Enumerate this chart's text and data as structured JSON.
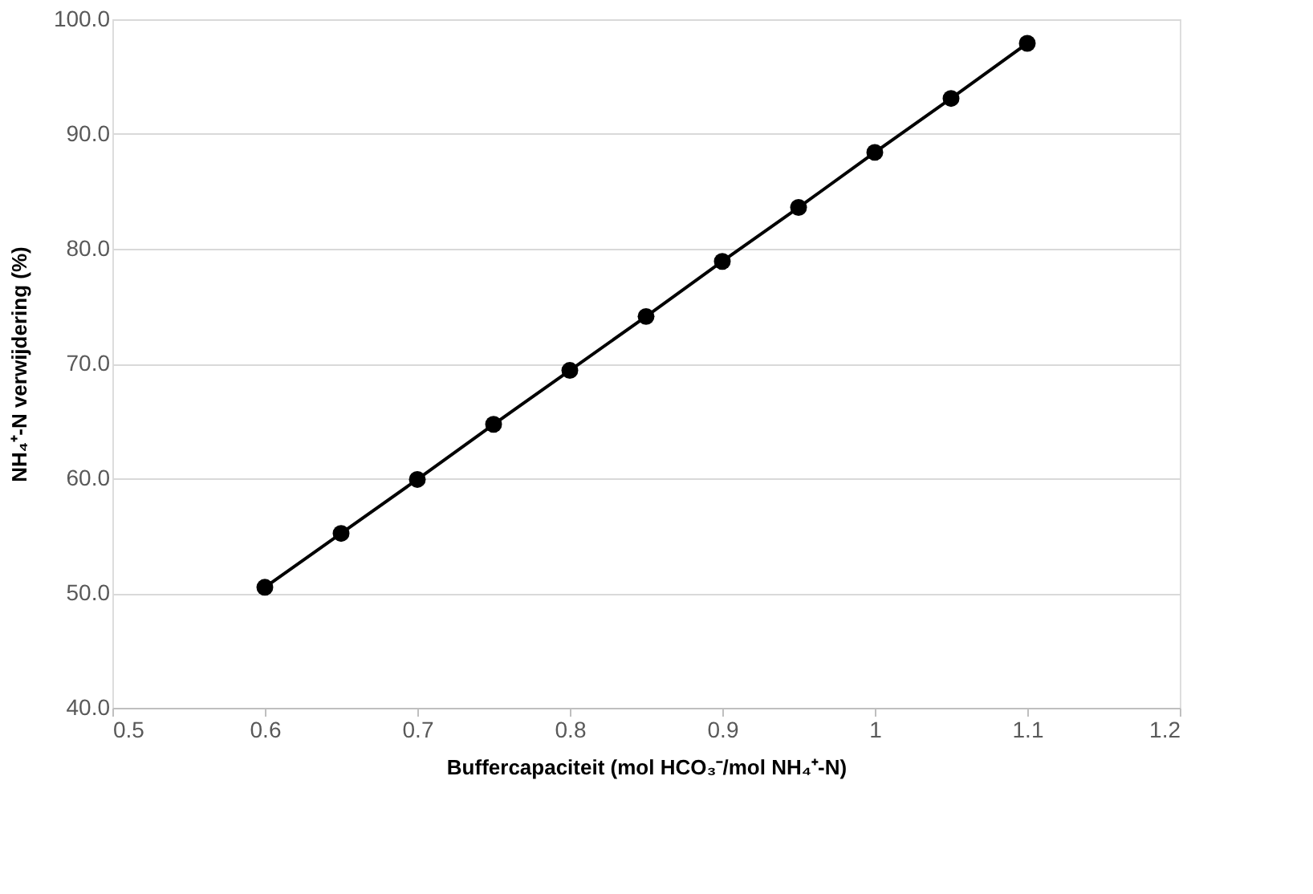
{
  "chart_data": {
    "type": "line",
    "xlabel": "Buffercapaciteit (mol HCO₃⁻/mol NH₄⁺-N)",
    "ylabel": "NH₄⁺-N verwijdering (%)",
    "x": [
      0.6,
      0.65,
      0.7,
      0.75,
      0.8,
      0.85,
      0.9,
      0.95,
      1.0,
      1.05,
      1.1
    ],
    "series": [
      {
        "color": "#000000",
        "values": [
          50.5,
          55.2,
          59.9,
          64.7,
          69.4,
          74.1,
          78.9,
          83.6,
          88.4,
          93.1,
          97.9
        ]
      }
    ],
    "xlim": [
      0.5,
      1.2
    ],
    "xticks": [
      0.5,
      0.6,
      0.7,
      0.8,
      0.9,
      {
        "value": 1,
        "label": "1"
      },
      1.1,
      1.2
    ],
    "ylim": [
      40,
      100
    ],
    "yticks": [
      {
        "value": 40,
        "label": "40.0"
      },
      {
        "value": 50,
        "label": "50.0"
      },
      {
        "value": 60,
        "label": "60.0"
      },
      {
        "value": 70,
        "label": "70.0"
      },
      {
        "value": 80,
        "label": "80.0"
      },
      {
        "value": 90,
        "label": "90.0"
      },
      {
        "value": 100,
        "label": "100.0"
      }
    ],
    "grid": "y",
    "marker": "circle",
    "line_style": "solid",
    "legend": false
  }
}
